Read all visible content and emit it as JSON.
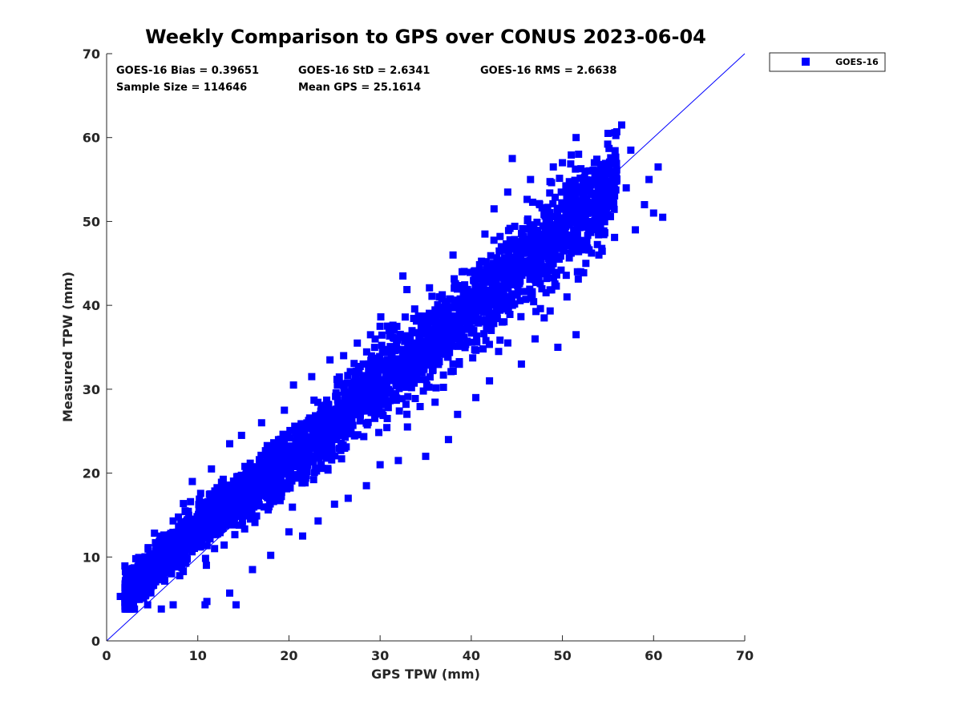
{
  "colors": {
    "series": "#0000ff",
    "axes": "#262626",
    "background": "#ffffff"
  },
  "chart_data": {
    "type": "scatter",
    "title": "Weekly Comparison to GPS over CONUS 2023-06-04",
    "xlabel": "GPS TPW (mm)",
    "ylabel": "Measured TPW (mm)",
    "xlim": [
      0,
      70
    ],
    "ylim": [
      0,
      70
    ],
    "xticks": [
      "0",
      "10",
      "20",
      "30",
      "40",
      "50",
      "60",
      "70"
    ],
    "yticks": [
      "0",
      "10",
      "20",
      "30",
      "40",
      "50",
      "60",
      "70"
    ],
    "grid": false,
    "legend": {
      "placement": "outside-top-right",
      "entries": [
        "GOES-16"
      ]
    },
    "reference_line": {
      "type": "one-to-one",
      "from": [
        0,
        0
      ],
      "to": [
        70,
        70
      ]
    },
    "stats": [
      "GOES-16 Bias = 0.39651",
      "GOES-16 StD = 2.6341",
      "GOES-16 RMS = 2.6638",
      "Sample Size = 114646",
      "Mean GPS = 25.1614"
    ],
    "series": [
      {
        "name": "GOES-16",
        "marker": "square",
        "color": "#0000ff",
        "sample_size": 114646,
        "bias": 0.39651,
        "std": 2.6341,
        "rms": 2.6638,
        "mean_x": 25.1614,
        "points": [
          [
            1.5,
            5.3
          ],
          [
            2.0,
            4.6
          ],
          [
            2.5,
            6.5
          ],
          [
            3.2,
            9.8
          ],
          [
            3.5,
            5.0
          ],
          [
            4.5,
            4.3
          ],
          [
            5.0,
            7.0
          ],
          [
            6.0,
            3.8
          ],
          [
            7.3,
            14.3
          ],
          [
            7.3,
            4.3
          ],
          [
            9.0,
            12.5
          ],
          [
            9.4,
            19.0
          ],
          [
            10.8,
            4.3
          ],
          [
            10.8,
            16.3
          ],
          [
            11.0,
            4.7
          ],
          [
            11.5,
            20.5
          ],
          [
            13.5,
            5.7
          ],
          [
            13.5,
            23.5
          ],
          [
            14.2,
            4.3
          ],
          [
            14.8,
            24.5
          ],
          [
            16.0,
            8.5
          ],
          [
            17.0,
            26.0
          ],
          [
            18.0,
            10.2
          ],
          [
            19.5,
            27.5
          ],
          [
            20.0,
            13.0
          ],
          [
            20.5,
            30.5
          ],
          [
            21.5,
            12.5
          ],
          [
            22.5,
            31.5
          ],
          [
            23.2,
            14.3
          ],
          [
            24.5,
            33.5
          ],
          [
            25.0,
            16.3
          ],
          [
            26.0,
            34.0
          ],
          [
            26.5,
            17.0
          ],
          [
            27.5,
            35.5
          ],
          [
            28.5,
            18.5
          ],
          [
            30.0,
            37.5
          ],
          [
            30.0,
            21.0
          ],
          [
            31.0,
            37.0
          ],
          [
            32.0,
            21.5
          ],
          [
            32.5,
            43.5
          ],
          [
            33.0,
            25.5
          ],
          [
            34.5,
            37.5
          ],
          [
            35.0,
            22.0
          ],
          [
            36.5,
            41.0
          ],
          [
            37.5,
            24.0
          ],
          [
            38.0,
            46.0
          ],
          [
            38.5,
            27.0
          ],
          [
            39.0,
            44.0
          ],
          [
            40.5,
            29.0
          ],
          [
            41.5,
            48.5
          ],
          [
            42.0,
            31.0
          ],
          [
            42.5,
            51.5
          ],
          [
            43.0,
            34.5
          ],
          [
            44.0,
            53.5
          ],
          [
            44.5,
            57.5
          ],
          [
            45.5,
            33.0
          ],
          [
            46.5,
            55.0
          ],
          [
            47.0,
            36.0
          ],
          [
            47.5,
            52.0
          ],
          [
            48.0,
            38.5
          ],
          [
            49.0,
            56.5
          ],
          [
            49.5,
            35.0
          ],
          [
            50.0,
            57.0
          ],
          [
            50.5,
            41.0
          ],
          [
            51.5,
            60.0
          ],
          [
            51.5,
            36.5
          ],
          [
            52.0,
            44.0
          ],
          [
            53.0,
            49.0
          ],
          [
            53.5,
            57.0
          ],
          [
            54.0,
            46.0
          ],
          [
            55.0,
            60.5
          ],
          [
            55.5,
            53.0
          ],
          [
            56.5,
            61.5
          ],
          [
            57.0,
            54.0
          ],
          [
            57.5,
            58.5
          ],
          [
            58.0,
            49.0
          ],
          [
            59.0,
            52.0
          ],
          [
            59.5,
            55.0
          ],
          [
            60.0,
            51.0
          ],
          [
            60.5,
            56.5
          ],
          [
            61.0,
            50.5
          ]
        ],
        "dense_band": {
          "x_range": [
            2,
            56
          ],
          "centerline": [
            [
              2,
              5.6
            ],
            [
              10,
              13.4
            ],
            [
              20,
              21.0
            ],
            [
              30,
              31.0
            ],
            [
              40,
              39.5
            ],
            [
              50,
              49.0
            ],
            [
              56,
              54.5
            ]
          ],
          "spread_sd": 2.6341,
          "rendered_count": 3500
        }
      }
    ]
  }
}
